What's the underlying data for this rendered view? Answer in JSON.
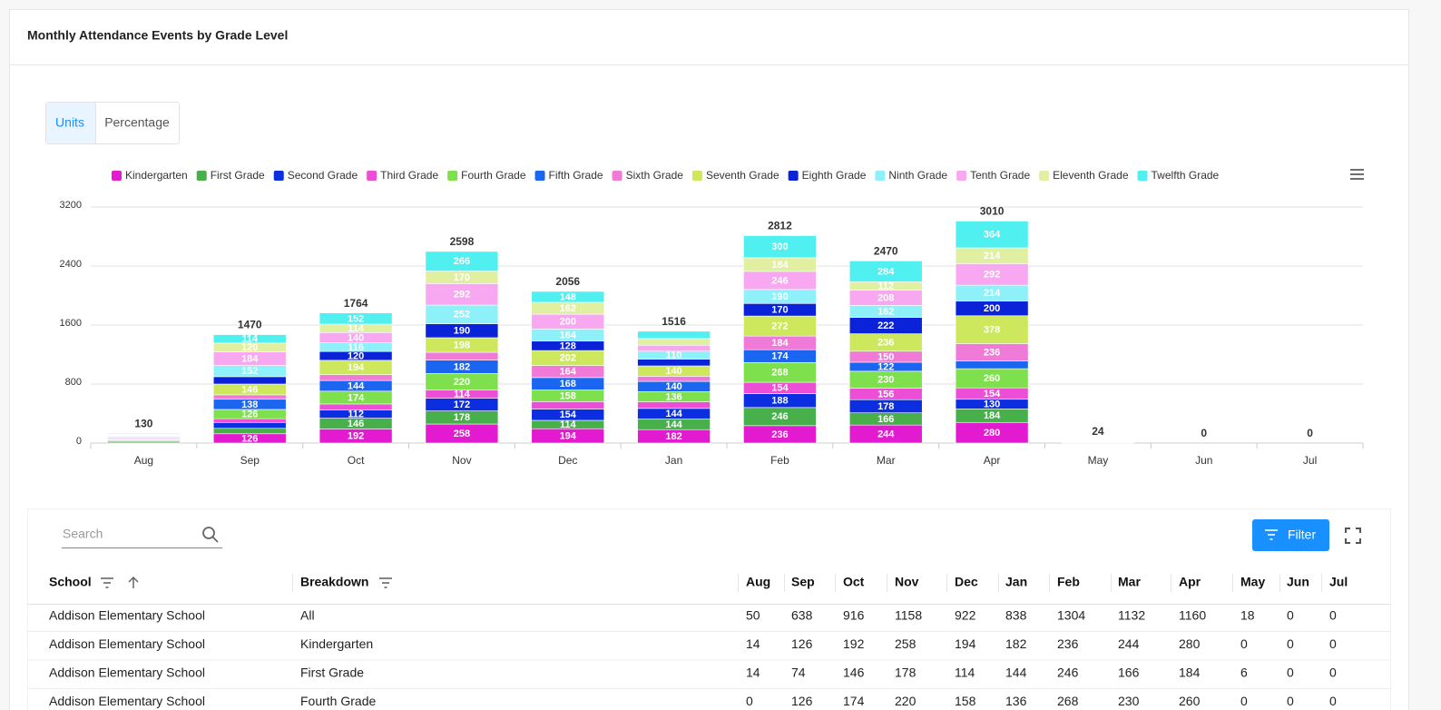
{
  "header": {
    "title": "Monthly Attendance Events by Grade Level"
  },
  "toggle": {
    "options": [
      "Units",
      "Percentage"
    ]
  },
  "chart_data": {
    "type": "stacked_bar",
    "categories": [
      "Aug",
      "Sep",
      "Oct",
      "Nov",
      "Dec",
      "Jan",
      "Feb",
      "Mar",
      "Apr",
      "May",
      "Jun",
      "Jul"
    ],
    "series": [
      {
        "name": "Kindergarten",
        "color": "#e31bd0",
        "values": [
          14,
          126,
          192,
          258,
          194,
          182,
          236,
          244,
          280,
          0,
          0,
          0
        ]
      },
      {
        "name": "First Grade",
        "color": "#47b04b",
        "values": [
          14,
          74,
          146,
          178,
          114,
          144,
          246,
          166,
          184,
          6,
          0,
          0
        ]
      },
      {
        "name": "Second Grade",
        "color": "#0a2ee0",
        "values": [
          10,
          80,
          112,
          172,
          154,
          144,
          188,
          178,
          130,
          2,
          0,
          0
        ]
      },
      {
        "name": "Third Grade",
        "color": "#ec4fd6",
        "values": [
          10,
          50,
          80,
          114,
          100,
          90,
          154,
          156,
          154,
          2,
          0,
          0
        ]
      },
      {
        "name": "Fourth Grade",
        "color": "#7ee04d",
        "values": [
          10,
          126,
          174,
          220,
          158,
          136,
          268,
          230,
          260,
          2,
          0,
          0
        ]
      },
      {
        "name": "Fifth Grade",
        "color": "#1a66f0",
        "values": [
          10,
          138,
          144,
          182,
          168,
          140,
          174,
          122,
          104,
          2,
          0,
          0
        ]
      },
      {
        "name": "Sixth Grade",
        "color": "#f07ad8",
        "values": [
          10,
          60,
          80,
          106,
          164,
          70,
          184,
          150,
          236,
          2,
          0,
          0
        ]
      },
      {
        "name": "Seventh Grade",
        "color": "#cde85c",
        "values": [
          10,
          146,
          194,
          198,
          202,
          140,
          272,
          236,
          378,
          2,
          0,
          0
        ]
      },
      {
        "name": "Eighth Grade",
        "color": "#0a22d8",
        "values": [
          8,
          100,
          120,
          190,
          128,
          90,
          170,
          222,
          200,
          2,
          0,
          0
        ]
      },
      {
        "name": "Ninth Grade",
        "color": "#8ef0f8",
        "values": [
          8,
          152,
          116,
          252,
          164,
          110,
          190,
          162,
          214,
          2,
          0,
          0
        ]
      },
      {
        "name": "Tenth Grade",
        "color": "#f8a8f0",
        "values": [
          8,
          184,
          140,
          292,
          200,
          80,
          246,
          208,
          292,
          2,
          0,
          0
        ]
      },
      {
        "name": "Eleventh Grade",
        "color": "#e0f0a0",
        "values": [
          8,
          120,
          114,
          170,
          162,
          90,
          184,
          112,
          214,
          0,
          0,
          0
        ]
      },
      {
        "name": "Twelfth Grade",
        "color": "#50f0f0",
        "values": [
          10,
          114,
          152,
          266,
          148,
          100,
          300,
          284,
          364,
          0,
          0,
          0
        ]
      }
    ],
    "totals": [
      130,
      1470,
      1764,
      2598,
      2056,
      1516,
      2812,
      2470,
      3010,
      24,
      0,
      0
    ],
    "ylim": [
      0,
      3200
    ],
    "yticks": [
      0,
      800,
      1600,
      2400,
      3200
    ],
    "grid": true
  },
  "table": {
    "search_placeholder": "Search",
    "filter_label": "Filter",
    "columns": [
      "School",
      "Breakdown",
      "Aug",
      "Sep",
      "Oct",
      "Nov",
      "Dec",
      "Jan",
      "Feb",
      "Mar",
      "Apr",
      "May",
      "Jun",
      "Jul"
    ],
    "rows": [
      [
        "Addison Elementary School",
        "All",
        50,
        638,
        916,
        1158,
        922,
        838,
        1304,
        1132,
        1160,
        18,
        0,
        0
      ],
      [
        "Addison Elementary School",
        "Kindergarten",
        14,
        126,
        192,
        258,
        194,
        182,
        236,
        244,
        280,
        0,
        0,
        0
      ],
      [
        "Addison Elementary School",
        "First Grade",
        14,
        74,
        146,
        178,
        114,
        144,
        246,
        166,
        184,
        6,
        0,
        0
      ],
      [
        "Addison Elementary School",
        "Fourth Grade",
        0,
        126,
        174,
        220,
        158,
        136,
        268,
        230,
        260,
        0,
        0,
        0
      ]
    ]
  }
}
